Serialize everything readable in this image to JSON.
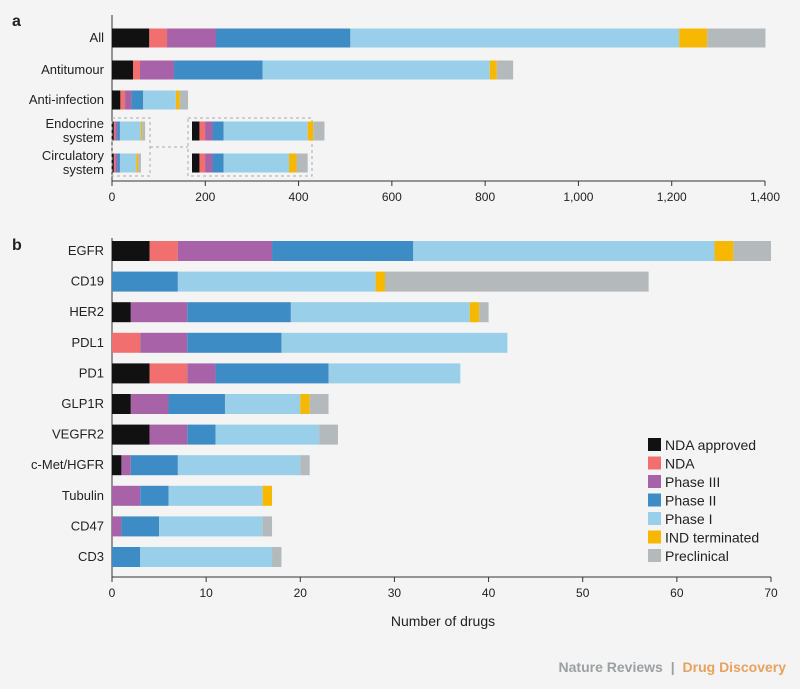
{
  "credit": {
    "publisher": "Nature Reviews",
    "separator": "|",
    "journal": "Drug Discovery"
  },
  "legend": [
    {
      "name": "NDA approved",
      "color": "#111111"
    },
    {
      "name": "NDA",
      "color": "#f26f6f"
    },
    {
      "name": "Phase III",
      "color": "#a862a8"
    },
    {
      "name": "Phase II",
      "color": "#3e8cc5"
    },
    {
      "name": "Phase I",
      "color": "#99cfe8"
    },
    {
      "name": "IND terminated",
      "color": "#f6b800"
    },
    {
      "name": "Preclinical",
      "color": "#b4b9bc"
    }
  ],
  "chart_data": [
    {
      "panel": "a",
      "type": "bar",
      "orientation": "horizontal",
      "stacked": true,
      "categories": [
        "All",
        "Antitumour",
        "Anti-infection",
        "Endocrine system",
        "Circulatory system"
      ],
      "xlim": [
        0,
        1400
      ],
      "xticks": [
        0,
        200,
        400,
        600,
        800,
        1000,
        1200,
        1400
      ],
      "xtick_labels": [
        "0",
        "200",
        "400",
        "600",
        "800",
        "1,000",
        "1,200",
        "1,400"
      ],
      "xlabel": "",
      "series": [
        {
          "name": "NDA approved",
          "values": [
            80,
            45,
            18,
            4,
            4
          ]
        },
        {
          "name": "NDA",
          "values": [
            38,
            15,
            10,
            3,
            3
          ]
        },
        {
          "name": "Phase III",
          "values": [
            105,
            73,
            14,
            4,
            4
          ]
        },
        {
          "name": "Phase II",
          "values": [
            288,
            190,
            25,
            6,
            6
          ]
        },
        {
          "name": "Phase I",
          "values": [
            705,
            487,
            70,
            45,
            35
          ]
        },
        {
          "name": "IND terminated",
          "values": [
            60,
            15,
            8,
            3,
            4
          ]
        },
        {
          "name": "Preclinical",
          "values": [
            125,
            35,
            18,
            6,
            6
          ]
        }
      ],
      "inset_note": "Endocrine and circulatory bars are magnified in the dashed inset",
      "inset_scale": 4
    },
    {
      "panel": "b",
      "type": "bar",
      "orientation": "horizontal",
      "stacked": true,
      "categories": [
        "EGFR",
        "CD19",
        "HER2",
        "PDL1",
        "PD1",
        "GLP1R",
        "VEGFR2",
        "c-Met/HGFR",
        "Tubulin",
        "CD47",
        "CD3"
      ],
      "xlim": [
        0,
        70
      ],
      "xticks": [
        0,
        10,
        20,
        30,
        40,
        50,
        60,
        70
      ],
      "xtick_labels": [
        "0",
        "10",
        "20",
        "30",
        "40",
        "50",
        "60",
        "70"
      ],
      "xlabel": "Number of drugs",
      "series": [
        {
          "name": "NDA approved",
          "values": [
            4,
            0,
            2,
            0,
            4,
            2,
            4,
            1,
            0,
            0,
            0
          ]
        },
        {
          "name": "NDA",
          "values": [
            3,
            0,
            0,
            3,
            4,
            0,
            0,
            0,
            0,
            0,
            0
          ]
        },
        {
          "name": "Phase III",
          "values": [
            10,
            0,
            6,
            5,
            3,
            4,
            4,
            1,
            3,
            1,
            0
          ]
        },
        {
          "name": "Phase II",
          "values": [
            15,
            7,
            11,
            10,
            12,
            6,
            3,
            5,
            3,
            4,
            3
          ]
        },
        {
          "name": "Phase I",
          "values": [
            32,
            21,
            19,
            24,
            14,
            8,
            11,
            13,
            10,
            11,
            14
          ]
        },
        {
          "name": "IND terminated",
          "values": [
            2,
            1,
            1,
            0,
            0,
            1,
            0,
            0,
            1,
            0,
            0
          ]
        },
        {
          "name": "Preclinical",
          "values": [
            4,
            28,
            1,
            0,
            0,
            2,
            2,
            1,
            0,
            1,
            1
          ]
        }
      ]
    }
  ]
}
